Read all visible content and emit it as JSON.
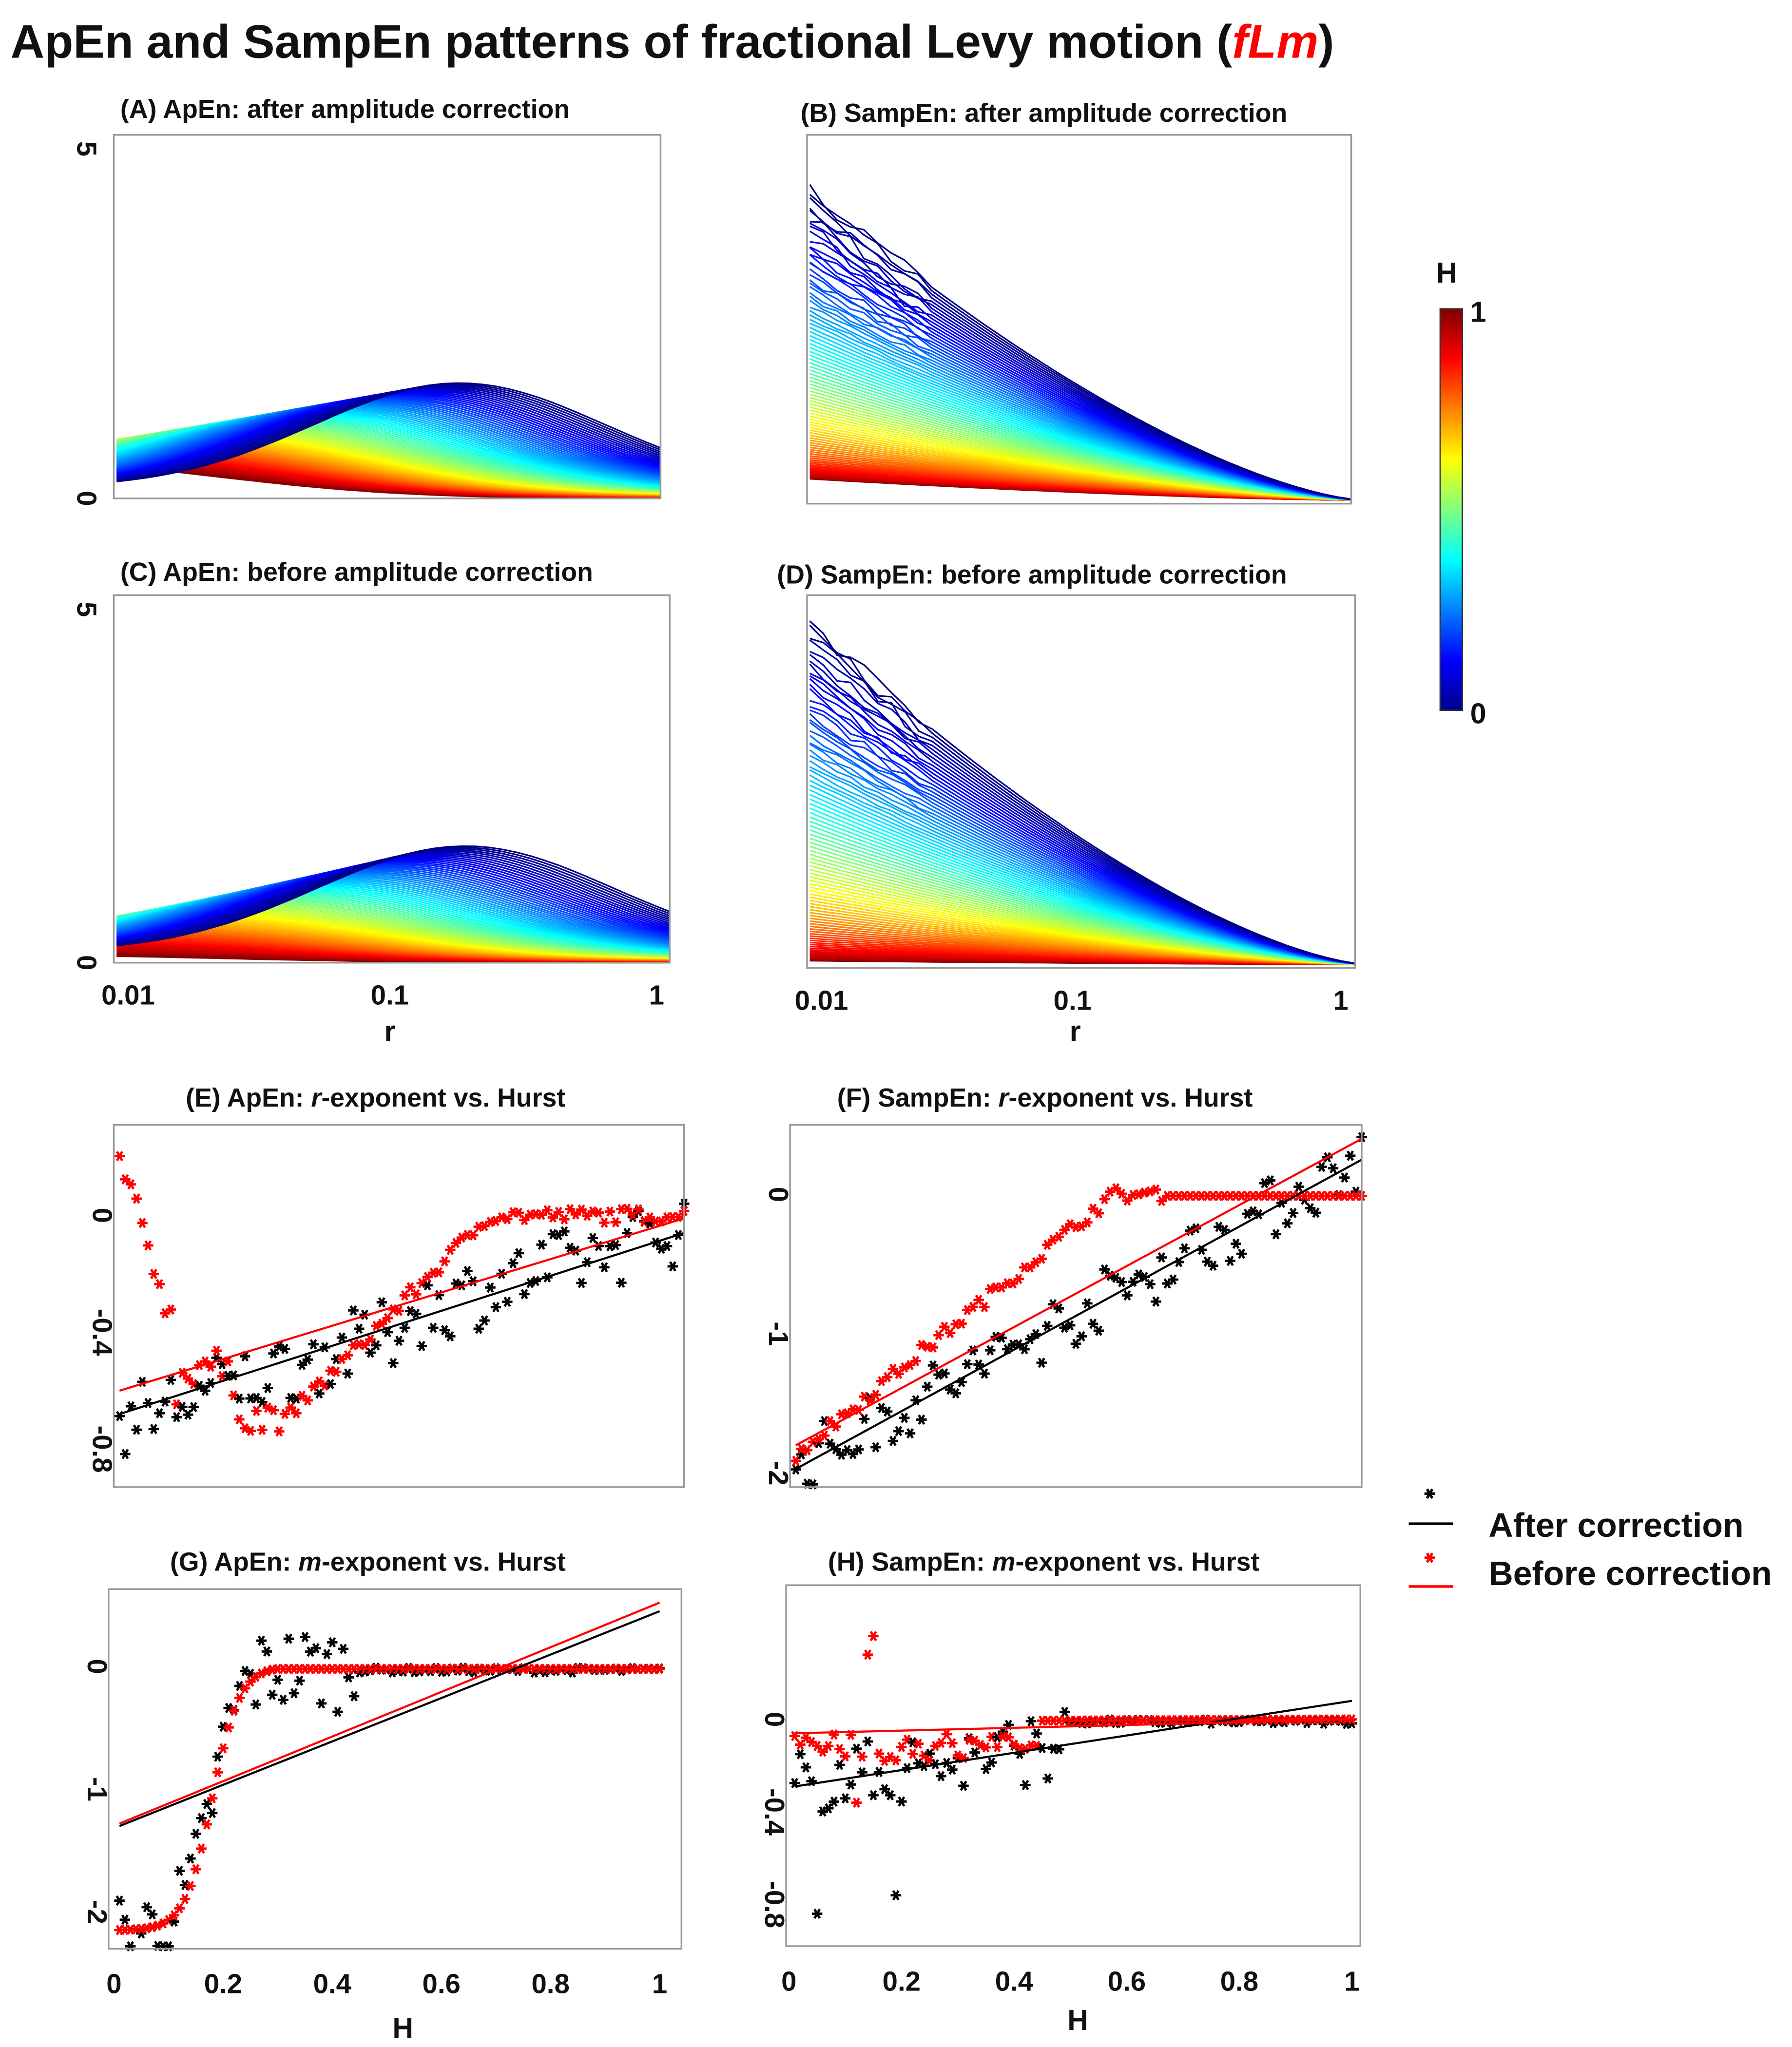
{
  "title": {
    "main": "ApEn and SampEn patterns of fractional Levy motion (",
    "highlight": "fLm",
    "end": ")",
    "highlight_color": "#ff0000"
  },
  "colorbar": {
    "label": "H",
    "max_label": "1",
    "min_label": "0",
    "range": [
      0,
      1
    ],
    "colormap": "jet"
  },
  "legend": {
    "after": "After correction",
    "before": "Before correction",
    "after_color": "#000000",
    "before_color": "#ff0000"
  },
  "chart_data": [
    {
      "id": "A",
      "type": "line",
      "title": "(A) ApEn:  after amplitude correction",
      "xscale": "log",
      "xlim": [
        0.01,
        1
      ],
      "ylim": [
        0,
        5
      ],
      "yticks": [
        "0",
        "5"
      ],
      "xticks": [],
      "xlabel": "",
      "kind": "apen",
      "peak_blue": 1.5,
      "peak_red": 0.5,
      "curves": 90
    },
    {
      "id": "B",
      "type": "line",
      "title": "(B) SampEn: after amplitude correction",
      "xscale": "log",
      "xlim": [
        0.01,
        1
      ],
      "ylim": [
        0,
        5
      ],
      "yticks": [],
      "xticks": [],
      "xlabel": "",
      "kind": "sampen",
      "start_blue": 4.2,
      "start_red": 0.3,
      "curves": 90
    },
    {
      "id": "C",
      "type": "line",
      "title": "(C) ApEn: before amplitude correction",
      "xscale": "log",
      "xlim": [
        0.01,
        1
      ],
      "ylim": [
        0,
        5
      ],
      "yticks": [
        "0",
        "5"
      ],
      "xticks": [
        "0.01",
        "0.1",
        "1"
      ],
      "xlabel": "r",
      "kind": "apen",
      "peak_blue": 1.5,
      "peak_red": 0.1,
      "curves": 90
    },
    {
      "id": "D",
      "type": "line",
      "title": "(D) SampEn: before amplitude correction",
      "xscale": "log",
      "xlim": [
        0.01,
        1
      ],
      "ylim": [
        0,
        5
      ],
      "yticks": [],
      "xticks": [
        "0.01",
        "0.1",
        "1"
      ],
      "xlabel": "r",
      "kind": "sampen",
      "start_blue": 4.6,
      "start_red": 0.05,
      "curves": 90
    },
    {
      "id": "E",
      "type": "scatter",
      "title_pre": "(E) ApEn: ",
      "title_it": "r",
      "title_post": "-exponent vs. Hurst",
      "xlim": [
        0,
        1
      ],
      "ylim": [
        -0.93,
        0.31
      ],
      "yticks": [
        {
          "v": 0,
          "t": "0"
        },
        {
          "v": -0.4,
          "t": "-0.4"
        },
        {
          "v": -0.8,
          "t": "-0.8"
        }
      ],
      "xticks": [],
      "xlabel": "",
      "fit_after": [
        -0.68,
        -0.06
      ],
      "fit_before": [
        -0.6,
        -0.01
      ]
    },
    {
      "id": "F",
      "type": "scatter",
      "title_pre": "(F) SampEn: ",
      "title_it": "r",
      "title_post": "-exponent vs. Hurst",
      "xlim": [
        0,
        1
      ],
      "ylim": [
        -2.1,
        0.5
      ],
      "yticks": [
        {
          "v": 0,
          "t": "0"
        },
        {
          "v": -1,
          "t": "-1"
        },
        {
          "v": -2,
          "t": "-2"
        }
      ],
      "xticks": [],
      "xlabel": "",
      "fit_after": [
        -1.97,
        0.25
      ],
      "fit_before": [
        -1.8,
        0.4
      ]
    },
    {
      "id": "G",
      "type": "scatter",
      "title_pre": "(G) ApEn: ",
      "title_it": "m",
      "title_post": "-exponent vs. Hurst",
      "xlim": [
        -0.01,
        1.04
      ],
      "ylim": [
        -2.3,
        0.63
      ],
      "yticks": [
        {
          "v": 0,
          "t": "0"
        },
        {
          "v": -1,
          "t": "-1"
        },
        {
          "v": -2,
          "t": "-2"
        }
      ],
      "xticks": [
        "0",
        "0.2",
        "0.4",
        "0.6",
        "0.8",
        "1"
      ],
      "xlabel": "H",
      "fit_after": [
        -1.3,
        0.45
      ],
      "fit_before": [
        -1.28,
        0.52
      ]
    },
    {
      "id": "H",
      "type": "scatter",
      "title_pre": "(H) SampEn: ",
      "title_it": "m",
      "title_post": "-exponent vs. Hurst",
      "xlim": [
        -0.005,
        1.015
      ],
      "ylim": [
        -0.98,
        0.58
      ],
      "yticks": [
        {
          "v": 0,
          "t": "0"
        },
        {
          "v": -0.4,
          "t": "-0.4"
        },
        {
          "v": -0.8,
          "t": "-0.8"
        }
      ],
      "xticks": [
        "0",
        "0.2",
        "0.4",
        "0.6",
        "0.8",
        "1"
      ],
      "xlabel": "H",
      "fit_after": [
        -0.29,
        0.08
      ],
      "fit_before": [
        -0.06,
        0.0
      ]
    }
  ]
}
